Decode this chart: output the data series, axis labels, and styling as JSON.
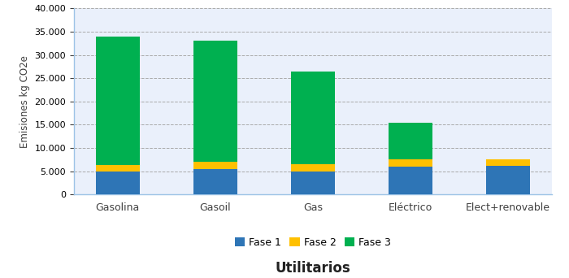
{
  "categories": [
    "Gasolina",
    "Gasoil",
    "Gas",
    "Eléctrico",
    "Elect+renovable"
  ],
  "fase1": [
    4900,
    5400,
    4900,
    6000,
    6100
  ],
  "fase2": [
    1500,
    1600,
    1600,
    1500,
    1400
  ],
  "fase3": [
    27600,
    26000,
    20000,
    8000,
    0
  ],
  "colors": {
    "Fase 1": "#2E75B6",
    "Fase 2": "#FFC000",
    "Fase 3": "#00B050"
  },
  "ylabel": "Emisiones kg CO2e",
  "xlabel": "Utilitarios",
  "ylim": [
    0,
    40000
  ],
  "yticks": [
    0,
    5000,
    10000,
    15000,
    20000,
    25000,
    30000,
    35000,
    40000
  ],
  "background_color": "#FFFFFF",
  "plot_bg_color": "#EAF0FB",
  "grid_color": "#AAAAAA",
  "spine_color": "#9DC3E6",
  "legend_labels": [
    "Fase 1",
    "Fase 2",
    "Fase 3"
  ]
}
